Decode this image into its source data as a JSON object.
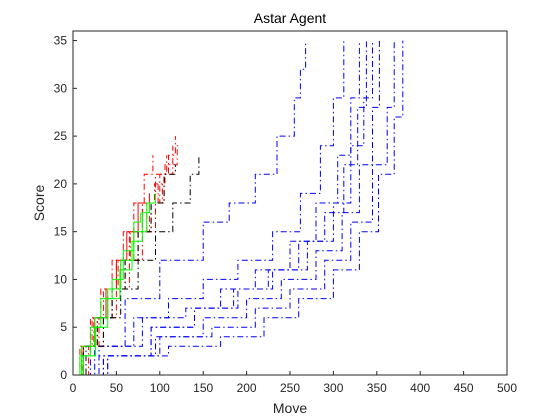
{
  "chart_data": {
    "type": "line",
    "title": "Astar Agent",
    "xlabel": "Move",
    "ylabel": "Score",
    "xlim": [
      0,
      500
    ],
    "ylim": [
      0,
      36
    ],
    "xticks": [
      0,
      50,
      100,
      150,
      200,
      250,
      300,
      350,
      400,
      450,
      500
    ],
    "yticks": [
      0,
      5,
      10,
      15,
      20,
      25,
      30,
      35
    ],
    "grid": false,
    "legend": "none",
    "series": [
      {
        "color": "#0000ff",
        "dash": "dashdot",
        "x": [
          0,
          20,
          60,
          100,
          150,
          180,
          210,
          235,
          255,
          262,
          268
        ],
        "y": [
          0,
          3,
          8,
          12,
          16,
          18,
          21,
          25,
          29,
          32,
          35
        ]
      },
      {
        "color": "#0000ff",
        "dash": "dashdot",
        "x": [
          0,
          25,
          70,
          110,
          150,
          190,
          230,
          262,
          285,
          300,
          312
        ],
        "y": [
          0,
          3,
          6,
          8,
          10,
          12,
          15,
          19,
          24,
          29,
          35
        ]
      },
      {
        "color": "#0000ff",
        "dash": "dashdot",
        "x": [
          0,
          30,
          80,
          130,
          170,
          210,
          250,
          280,
          305,
          320,
          330
        ],
        "y": [
          0,
          3,
          6,
          7,
          9,
          11,
          14,
          18,
          23,
          29,
          35
        ]
      },
      {
        "color": "#0000ff",
        "dash": "dashdot",
        "x": [
          0,
          30,
          90,
          140,
          190,
          230,
          270,
          300,
          320,
          335,
          345
        ],
        "y": [
          0,
          2,
          5,
          7,
          9,
          11,
          14,
          18,
          24,
          29,
          35
        ]
      },
      {
        "color": "#0000ff",
        "dash": "dashdot",
        "x": [
          0,
          35,
          95,
          150,
          200,
          240,
          280,
          310,
          330,
          345,
          353
        ],
        "y": [
          0,
          2,
          4,
          6,
          8,
          10,
          13,
          17,
          22,
          28,
          35
        ]
      },
      {
        "color": "#0000ff",
        "dash": "dashdot",
        "x": [
          0,
          40,
          100,
          160,
          210,
          250,
          290,
          320,
          345,
          362,
          370
        ],
        "y": [
          0,
          2,
          4,
          5,
          7,
          9,
          12,
          16,
          22,
          28,
          35
        ]
      },
      {
        "color": "#0000ff",
        "dash": "dashdot",
        "x": [
          0,
          40,
          110,
          170,
          220,
          260,
          300,
          330,
          352,
          370,
          380
        ],
        "y": [
          0,
          2,
          3,
          4,
          6,
          8,
          11,
          15,
          21,
          27,
          35
        ]
      },
      {
        "color": "#0000ff",
        "dash": "dashdot",
        "x": [
          0,
          35,
          90,
          140,
          185,
          225,
          260,
          290,
          312,
          328,
          338
        ],
        "y": [
          0,
          2,
          5,
          7,
          9,
          11,
          14,
          17,
          22,
          28,
          35
        ]
      },
      {
        "color": "#ff0000",
        "dash": "dashdot",
        "x": [
          0,
          10,
          25,
          40,
          55,
          70,
          85,
          100,
          110,
          118
        ],
        "y": [
          0,
          3,
          6,
          9,
          12,
          15,
          18,
          21,
          23,
          25
        ]
      },
      {
        "color": "#ff0000",
        "dash": "dashdot",
        "x": [
          0,
          12,
          28,
          45,
          60,
          75,
          90,
          105,
          115
        ],
        "y": [
          0,
          3,
          6,
          9,
          12,
          15,
          18,
          21,
          24
        ]
      },
      {
        "color": "#ff0000",
        "dash": "dashdot",
        "x": [
          0,
          10,
          22,
          35,
          50,
          65,
          80,
          95,
          108
        ],
        "y": [
          0,
          3,
          6,
          9,
          12,
          15,
          18,
          21,
          23
        ]
      },
      {
        "color": "#ff0000",
        "dash": "dashdot",
        "x": [
          0,
          15,
          30,
          45,
          60,
          75,
          88,
          98
        ],
        "y": [
          0,
          3,
          6,
          9,
          12,
          15,
          18,
          20
        ]
      },
      {
        "color": "#ff0000",
        "dash": "dashdot",
        "x": [
          0,
          8,
          20,
          32,
          45,
          58,
          70,
          82,
          92
        ],
        "y": [
          0,
          3,
          6,
          9,
          12,
          15,
          18,
          21,
          23
        ]
      },
      {
        "color": "#ff0000",
        "dash": "solid",
        "x": [
          0,
          12,
          25,
          38,
          50,
          62,
          75,
          88
        ],
        "y": [
          0,
          3,
          6,
          9,
          12,
          15,
          18,
          19
        ]
      },
      {
        "color": "#ff0000",
        "dash": "dashdot",
        "x": [
          0,
          18,
          35,
          50,
          65,
          80,
          95,
          103
        ],
        "y": [
          0,
          3,
          6,
          9,
          12,
          15,
          18,
          20
        ]
      },
      {
        "color": "#ff0000",
        "dash": "dashdot",
        "x": [
          0,
          10,
          24,
          38,
          52,
          66,
          80,
          94,
          106,
          120,
          125
        ],
        "y": [
          0,
          3,
          6,
          9,
          12,
          15,
          18,
          20,
          22,
          24,
          24
        ]
      },
      {
        "color": "#000000",
        "dash": "dashdot",
        "x": [
          0,
          15,
          35,
          55,
          75,
          95,
          115,
          135,
          145
        ],
        "y": [
          0,
          3,
          6,
          9,
          12,
          15,
          18,
          21,
          23
        ]
      },
      {
        "color": "#000000",
        "dash": "dashdot",
        "x": [
          0,
          12,
          28,
          45,
          60,
          75,
          90,
          105,
          118
        ],
        "y": [
          0,
          3,
          6,
          9,
          12,
          15,
          18,
          21,
          22
        ]
      },
      {
        "color": "#00ff00",
        "dash": "solid",
        "x": [
          0,
          10,
          25,
          40,
          55,
          70,
          85,
          95
        ],
        "y": [
          0,
          3,
          6,
          9,
          12,
          15,
          18,
          19
        ]
      },
      {
        "color": "#00ff00",
        "dash": "solid",
        "x": [
          0,
          8,
          20,
          32,
          45,
          58,
          70,
          78
        ],
        "y": [
          0,
          2,
          5,
          8,
          10,
          13,
          16,
          17
        ]
      },
      {
        "color": "#00ff00",
        "dash": "solid",
        "x": [
          0,
          12,
          26,
          40,
          54,
          68,
          80,
          88
        ],
        "y": [
          0,
          2,
          5,
          8,
          11,
          14,
          17,
          18
        ]
      }
    ]
  }
}
